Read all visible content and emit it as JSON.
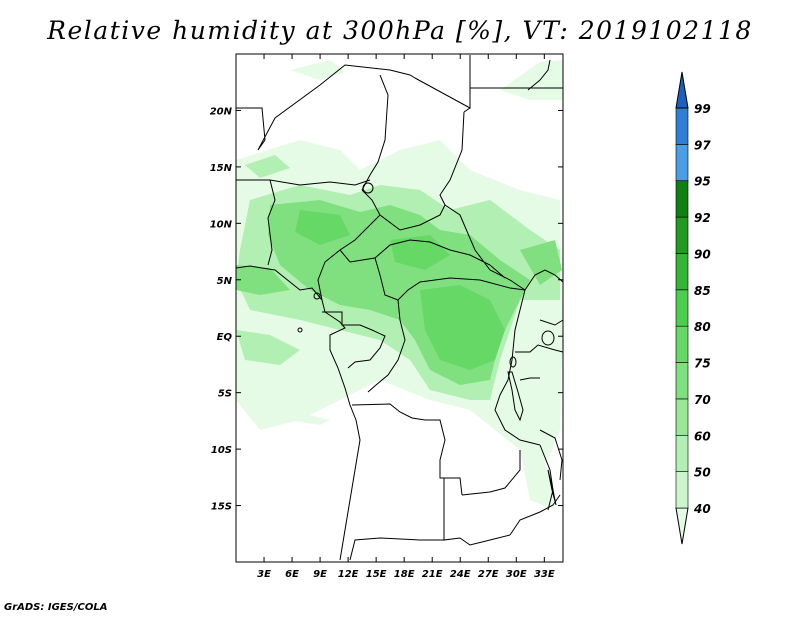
{
  "title": "Relative humidity at 300hPa [%], VT: 2019102118",
  "credit": "GrADS: IGES/COLA",
  "map": {
    "lon_range": [
      0,
      35
    ],
    "lat_range": [
      -20,
      25
    ],
    "lon_ticks": [
      {
        "value": 3,
        "label": "3E"
      },
      {
        "value": 6,
        "label": "6E"
      },
      {
        "value": 9,
        "label": "9E"
      },
      {
        "value": 12,
        "label": "12E"
      },
      {
        "value": 15,
        "label": "15E"
      },
      {
        "value": 18,
        "label": "18E"
      },
      {
        "value": 21,
        "label": "21E"
      },
      {
        "value": 24,
        "label": "24E"
      },
      {
        "value": 27,
        "label": "27E"
      },
      {
        "value": 30,
        "label": "30E"
      },
      {
        "value": 33,
        "label": "33E"
      }
    ],
    "lat_ticks": [
      {
        "value": 20,
        "label": "20N"
      },
      {
        "value": 15,
        "label": "15N"
      },
      {
        "value": 10,
        "label": "10N"
      },
      {
        "value": 5,
        "label": "5N"
      },
      {
        "value": 0,
        "label": "EQ"
      },
      {
        "value": -5,
        "label": "5S"
      },
      {
        "value": -10,
        "label": "10S"
      },
      {
        "value": -15,
        "label": "15S"
      }
    ]
  },
  "colorbar": {
    "levels": [
      "40",
      "50",
      "60",
      "70",
      "75",
      "80",
      "85",
      "90",
      "92",
      "95",
      "97",
      "99"
    ],
    "colors": [
      "#e6fbe6",
      "#cdf5cd",
      "#b2efb2",
      "#98e898",
      "#80e080",
      "#66d866",
      "#4dcd4d",
      "#35b535",
      "#229a22",
      "#118011",
      "#4a9ee6",
      "#2f7fd6",
      "#1b60bf"
    ]
  },
  "colors": {
    "border": "#000000",
    "background": "#ffffff"
  }
}
